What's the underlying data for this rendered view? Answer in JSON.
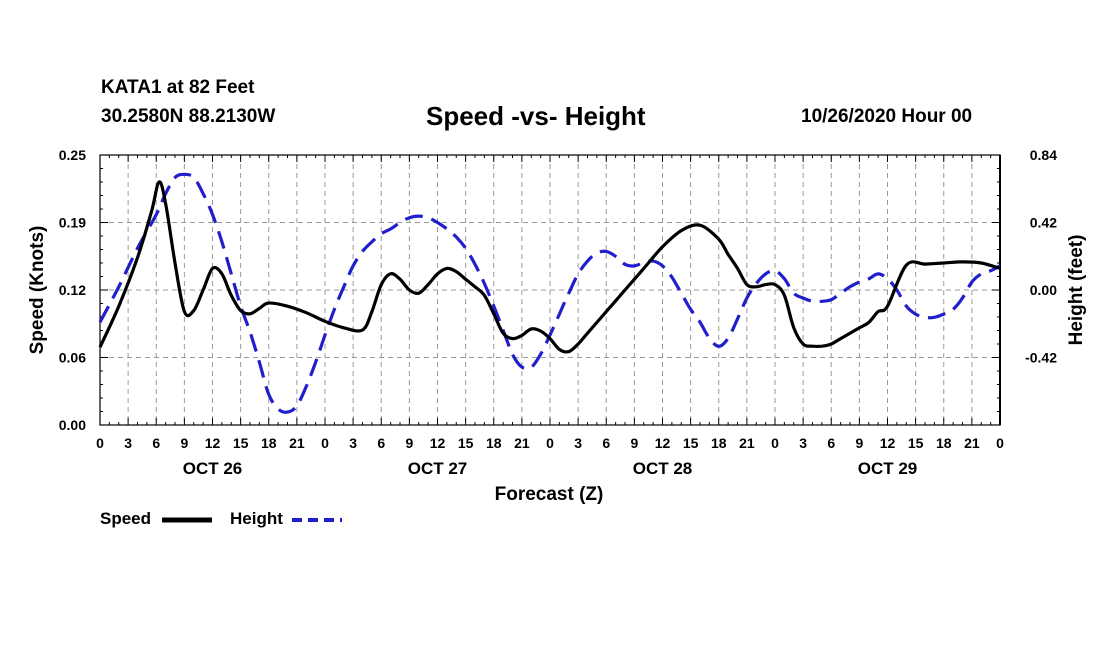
{
  "header": {
    "station": "KATA1 at 82 Feet",
    "coords": "30.2580N 88.2130W",
    "title": "Speed -vs- Height",
    "date": "10/26/2020 Hour 00"
  },
  "chart_data": {
    "type": "line",
    "title": "Speed -vs- Height",
    "xlabel": "Forecast (Z)",
    "ylabel": "Speed (Knots)",
    "y2label": "Height (feet)",
    "x_range_hours": [
      0,
      96
    ],
    "ylim": [
      0,
      0.25
    ],
    "y2lim": [
      -0.84,
      0.84
    ],
    "yticks": [
      "0.00",
      "0.06",
      "0.12",
      "0.19",
      "0.25"
    ],
    "y2ticks": [
      "-0.42",
      "0.00",
      "0.42",
      "0.84"
    ],
    "y2tick_values": [
      -0.42,
      0.0,
      0.42,
      0.84
    ],
    "xtick_labels": [
      "0",
      "3",
      "6",
      "9",
      "12",
      "15",
      "18",
      "21",
      "0",
      "3",
      "6",
      "9",
      "12",
      "15",
      "18",
      "21",
      "0",
      "3",
      "6",
      "9",
      "12",
      "15",
      "18",
      "21",
      "0",
      "3",
      "6",
      "9",
      "12",
      "15",
      "18",
      "21",
      "0"
    ],
    "day_labels": [
      "OCT 26",
      "OCT 27",
      "OCT 28",
      "OCT 29"
    ],
    "grid": true,
    "legend": [
      "Speed",
      "Height"
    ],
    "colors": {
      "speed": "#000000",
      "height": "#1f1fcc",
      "grid": "#9a9a9a"
    },
    "series": [
      {
        "name": "Speed",
        "x": [
          0,
          2,
          4,
          5.5,
          6.3,
          7,
          8,
          9,
          10,
          11,
          12,
          13,
          14,
          15,
          16,
          17,
          18,
          20,
          22,
          24,
          26,
          28,
          29,
          30,
          31,
          32,
          33,
          34,
          35,
          36,
          37,
          38,
          39,
          40,
          41,
          42,
          43,
          44,
          45,
          46,
          47,
          48,
          49,
          50,
          51,
          52,
          54,
          56,
          58,
          60,
          62,
          64,
          66,
          67,
          68,
          69,
          70,
          71,
          72,
          73,
          74,
          75,
          76,
          77,
          78,
          79,
          80,
          81,
          82,
          83,
          84,
          86,
          88,
          90,
          92,
          94,
          96
        ],
        "values": [
          0.072,
          0.11,
          0.155,
          0.198,
          0.225,
          0.205,
          0.15,
          0.105,
          0.106,
          0.125,
          0.145,
          0.14,
          0.12,
          0.106,
          0.103,
          0.108,
          0.113,
          0.11,
          0.104,
          0.096,
          0.09,
          0.088,
          0.105,
          0.13,
          0.14,
          0.135,
          0.125,
          0.122,
          0.13,
          0.14,
          0.145,
          0.142,
          0.135,
          0.128,
          0.12,
          0.103,
          0.085,
          0.08,
          0.083,
          0.089,
          0.087,
          0.08,
          0.07,
          0.068,
          0.075,
          0.085,
          0.105,
          0.125,
          0.145,
          0.165,
          0.18,
          0.185,
          0.172,
          0.158,
          0.145,
          0.13,
          0.128,
          0.13,
          0.13,
          0.12,
          0.09,
          0.075,
          0.073,
          0.073,
          0.075,
          0.08,
          0.085,
          0.09,
          0.095,
          0.105,
          0.11,
          0.148,
          0.149,
          0.15,
          0.151,
          0.15,
          0.145
        ]
      },
      {
        "name": "Height",
        "x": [
          0,
          2,
          4,
          6,
          7,
          8,
          9,
          10,
          11,
          12,
          13,
          14,
          15,
          16,
          17,
          18,
          19,
          20,
          21,
          22,
          23,
          24,
          25,
          26,
          27,
          28,
          29,
          30,
          31,
          32,
          33,
          34,
          35,
          36,
          37,
          38,
          39,
          40,
          41,
          42,
          43,
          44,
          45,
          46,
          47,
          48,
          49,
          50,
          51,
          52,
          53,
          54,
          55,
          56,
          57,
          58,
          59,
          60,
          61,
          62,
          63,
          64,
          65,
          66,
          67,
          68,
          69,
          70,
          71,
          72,
          73,
          74,
          75,
          76,
          77,
          78,
          79,
          80,
          81,
          82,
          83,
          84,
          85,
          86,
          87,
          88,
          89,
          90,
          91,
          92,
          93,
          94,
          95,
          96
        ],
        "values": [
          -0.2,
          0.02,
          0.26,
          0.47,
          0.6,
          0.7,
          0.72,
          0.7,
          0.6,
          0.47,
          0.3,
          0.1,
          -0.1,
          -0.26,
          -0.45,
          -0.65,
          -0.74,
          -0.76,
          -0.72,
          -0.6,
          -0.45,
          -0.28,
          -0.12,
          0.02,
          0.15,
          0.24,
          0.3,
          0.35,
          0.38,
          0.42,
          0.45,
          0.46,
          0.45,
          0.42,
          0.38,
          0.33,
          0.26,
          0.16,
          0.04,
          -0.1,
          -0.25,
          -0.4,
          -0.48,
          -0.48,
          -0.4,
          -0.28,
          -0.15,
          -0.02,
          0.1,
          0.18,
          0.23,
          0.24,
          0.21,
          0.16,
          0.15,
          0.17,
          0.18,
          0.15,
          0.08,
          -0.02,
          -0.12,
          -0.2,
          -0.3,
          -0.35,
          -0.3,
          -0.18,
          -0.05,
          0.04,
          0.1,
          0.12,
          0.07,
          -0.02,
          -0.05,
          -0.07,
          -0.07,
          -0.06,
          -0.02,
          0.02,
          0.05,
          0.07,
          0.1,
          0.07,
          0.0,
          -0.1,
          -0.15,
          -0.17,
          -0.17,
          -0.15,
          -0.12,
          -0.05,
          0.05,
          0.1,
          0.12,
          0.15
        ]
      }
    ]
  }
}
